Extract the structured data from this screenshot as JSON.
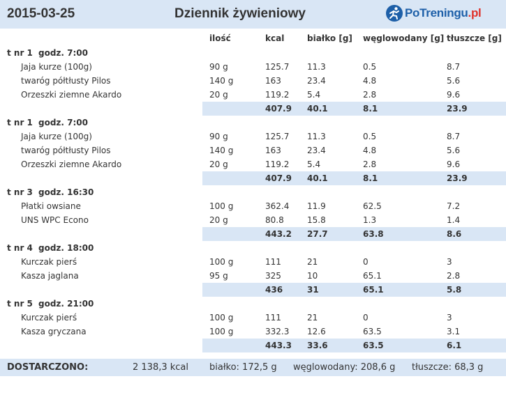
{
  "header": {
    "date": "2015-03-25",
    "title": "Dziennik żywieniowy",
    "logo_main": "PoTreningu",
    "logo_tld": ".pl"
  },
  "columns": {
    "qty": "ilość",
    "kcal": "kcal",
    "protein": "białko [g]",
    "carbs": "węglowodany [g]",
    "fat": "tłuszcze [g]"
  },
  "meals": [
    {
      "title": "t nr 1",
      "time": "godz. 7:00",
      "items": [
        {
          "name": "Jaja kurze (100g)",
          "qty": "90 g",
          "kcal": "125.7",
          "protein": "11.3",
          "carbs": "0.5",
          "fat": "8.7"
        },
        {
          "name": "twaróg półtłusty Pilos",
          "qty": "140 g",
          "kcal": "163",
          "protein": "23.4",
          "carbs": "4.8",
          "fat": "5.6"
        },
        {
          "name": "Orzeszki ziemne Akardo",
          "qty": "20 g",
          "kcal": "119.2",
          "protein": "5.4",
          "carbs": "2.8",
          "fat": "9.6"
        }
      ],
      "total": {
        "kcal": "407.9",
        "protein": "40.1",
        "carbs": "8.1",
        "fat": "23.9"
      }
    },
    {
      "title": "t nr 1",
      "time": "godz. 7:00",
      "items": [
        {
          "name": "Jaja kurze (100g)",
          "qty": "90 g",
          "kcal": "125.7",
          "protein": "11.3",
          "carbs": "0.5",
          "fat": "8.7"
        },
        {
          "name": "twaróg półtłusty Pilos",
          "qty": "140 g",
          "kcal": "163",
          "protein": "23.4",
          "carbs": "4.8",
          "fat": "5.6"
        },
        {
          "name": "Orzeszki ziemne Akardo",
          "qty": "20 g",
          "kcal": "119.2",
          "protein": "5.4",
          "carbs": "2.8",
          "fat": "9.6"
        }
      ],
      "total": {
        "kcal": "407.9",
        "protein": "40.1",
        "carbs": "8.1",
        "fat": "23.9"
      }
    },
    {
      "title": "t nr 3",
      "time": "godz. 16:30",
      "items": [
        {
          "name": "Płatki owsiane",
          "qty": "100 g",
          "kcal": "362.4",
          "protein": "11.9",
          "carbs": "62.5",
          "fat": "7.2"
        },
        {
          "name": "UNS WPC Econo",
          "qty": "20 g",
          "kcal": "80.8",
          "protein": "15.8",
          "carbs": "1.3",
          "fat": "1.4"
        }
      ],
      "total": {
        "kcal": "443.2",
        "protein": "27.7",
        "carbs": "63.8",
        "fat": "8.6"
      }
    },
    {
      "title": "t nr 4",
      "time": "godz. 18:00",
      "items": [
        {
          "name": "Kurczak pierś",
          "qty": "100 g",
          "kcal": "111",
          "protein": "21",
          "carbs": "0",
          "fat": "3"
        },
        {
          "name": "Kasza jaglana",
          "qty": "95 g",
          "kcal": "325",
          "protein": "10",
          "carbs": "65.1",
          "fat": "2.8"
        }
      ],
      "total": {
        "kcal": "436",
        "protein": "31",
        "carbs": "65.1",
        "fat": "5.8"
      }
    },
    {
      "title": "t nr 5",
      "time": "godz. 21:00",
      "items": [
        {
          "name": "Kurczak pierś",
          "qty": "100 g",
          "kcal": "111",
          "protein": "21",
          "carbs": "0",
          "fat": "3"
        },
        {
          "name": "Kasza gryczana",
          "qty": "100 g",
          "kcal": "332.3",
          "protein": "12.6",
          "carbs": "63.5",
          "fat": "3.1"
        }
      ],
      "total": {
        "kcal": "443.3",
        "protein": "33.6",
        "carbs": "63.5",
        "fat": "6.1"
      }
    }
  ],
  "summary": {
    "label": "DOSTARCZONO:",
    "kcal": "2 138,3 kcal",
    "protein": "białko: 172,5 g",
    "carbs": "węglowodany: 208,6 g",
    "fat": "tłuszcze: 68,3 g"
  },
  "colors": {
    "band": "#d9e6f5",
    "logo_blue": "#1d5fa8",
    "logo_red": "#e0322b"
  }
}
